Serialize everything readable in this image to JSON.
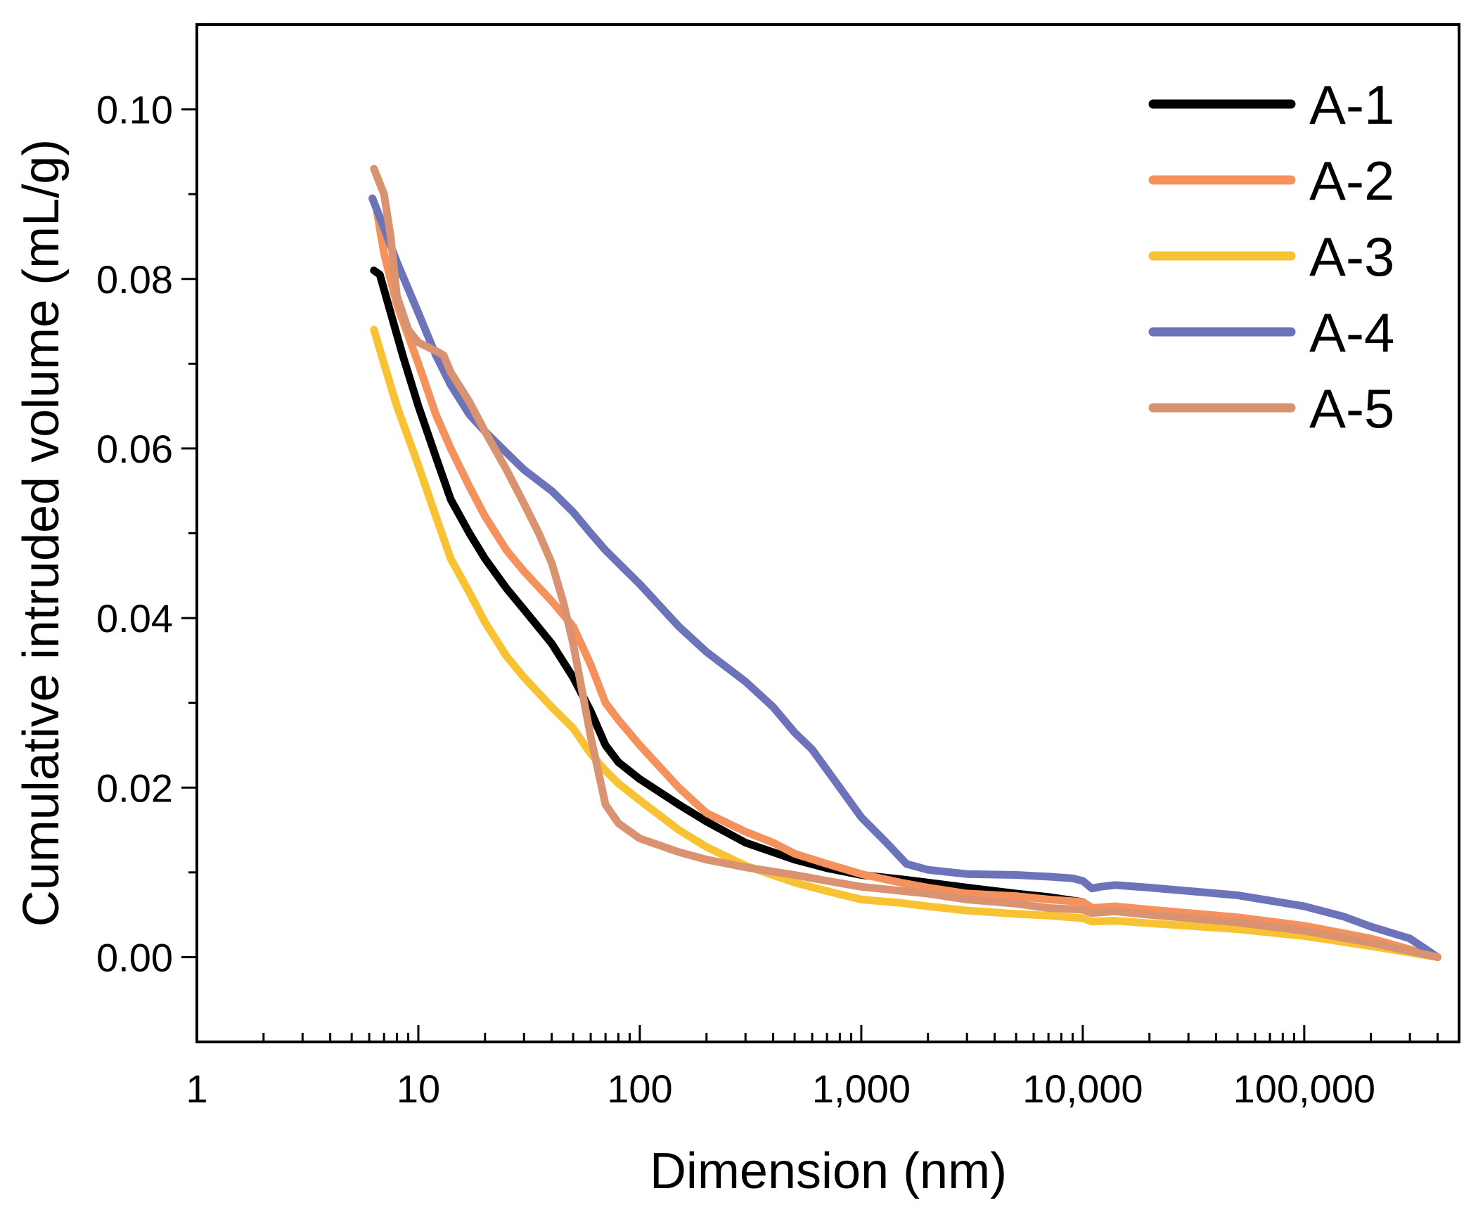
{
  "chart_data": {
    "type": "line",
    "title": "",
    "xlabel": "Dimension (nm)",
    "ylabel": "Cumulative intruded volume (mL/g)",
    "xscale": "log",
    "xlim": [
      1,
      500000
    ],
    "ylim": [
      -0.01,
      0.11
    ],
    "x_ticks": [
      {
        "value": 1,
        "label": "1"
      },
      {
        "value": 10,
        "label": "10"
      },
      {
        "value": 100,
        "label": "100"
      },
      {
        "value": 1000,
        "label": "1,000"
      },
      {
        "value": 10000,
        "label": "10,000"
      },
      {
        "value": 100000,
        "label": "100,000"
      }
    ],
    "y_ticks": [
      {
        "value": 0.0,
        "label": "0.00"
      },
      {
        "value": 0.02,
        "label": "0.02"
      },
      {
        "value": 0.04,
        "label": "0.04"
      },
      {
        "value": 0.06,
        "label": "0.06"
      },
      {
        "value": 0.08,
        "label": "0.08"
      },
      {
        "value": 0.1,
        "label": "0.10"
      }
    ],
    "y_minor_ticks": [
      0.01,
      0.03,
      0.05,
      0.07,
      0.09
    ],
    "legend_position": "top-right",
    "series": [
      {
        "name": "A-1",
        "color": "#000000",
        "points": [
          [
            6.3,
            0.081
          ],
          [
            6.7,
            0.0805
          ],
          [
            7.5,
            0.076
          ],
          [
            8.5,
            0.071
          ],
          [
            10,
            0.065
          ],
          [
            12,
            0.059
          ],
          [
            14,
            0.054
          ],
          [
            17,
            0.05
          ],
          [
            20,
            0.047
          ],
          [
            25,
            0.0435
          ],
          [
            30,
            0.041
          ],
          [
            40,
            0.037
          ],
          [
            50,
            0.033
          ],
          [
            60,
            0.029
          ],
          [
            70,
            0.025
          ],
          [
            80,
            0.023
          ],
          [
            100,
            0.021
          ],
          [
            150,
            0.018
          ],
          [
            200,
            0.016
          ],
          [
            300,
            0.0135
          ],
          [
            500,
            0.0115
          ],
          [
            700,
            0.0105
          ],
          [
            1000,
            0.0097
          ],
          [
            1500,
            0.0092
          ],
          [
            2000,
            0.0088
          ],
          [
            3000,
            0.0082
          ],
          [
            5000,
            0.0075
          ],
          [
            7000,
            0.0071
          ],
          [
            10000,
            0.0065
          ],
          [
            11000,
            0.0058
          ],
          [
            14000,
            0.0058
          ],
          [
            20000,
            0.0053
          ],
          [
            50000,
            0.0043
          ],
          [
            100000,
            0.0033
          ],
          [
            200000,
            0.0018
          ],
          [
            400000,
            0.0
          ]
        ]
      },
      {
        "name": "A-2",
        "color": "#f4915d",
        "points": [
          [
            6.5,
            0.088
          ],
          [
            7,
            0.083
          ],
          [
            8,
            0.077
          ],
          [
            10,
            0.07
          ],
          [
            12,
            0.064
          ],
          [
            14,
            0.06
          ],
          [
            17,
            0.0555
          ],
          [
            20,
            0.052
          ],
          [
            25,
            0.048
          ],
          [
            30,
            0.0455
          ],
          [
            40,
            0.042
          ],
          [
            50,
            0.039
          ],
          [
            60,
            0.0345
          ],
          [
            70,
            0.03
          ],
          [
            80,
            0.028
          ],
          [
            100,
            0.025
          ],
          [
            150,
            0.02
          ],
          [
            200,
            0.017
          ],
          [
            300,
            0.0148
          ],
          [
            400,
            0.0135
          ],
          [
            500,
            0.0122
          ],
          [
            700,
            0.011
          ],
          [
            1000,
            0.0098
          ],
          [
            1500,
            0.0088
          ],
          [
            2000,
            0.0082
          ],
          [
            3000,
            0.0075
          ],
          [
            5000,
            0.0072
          ],
          [
            7000,
            0.0068
          ],
          [
            10000,
            0.0065
          ],
          [
            11000,
            0.0058
          ],
          [
            14000,
            0.006
          ],
          [
            20000,
            0.0056
          ],
          [
            50000,
            0.0047
          ],
          [
            100000,
            0.0037
          ],
          [
            200000,
            0.0022
          ],
          [
            400000,
            0.0
          ]
        ]
      },
      {
        "name": "A-3",
        "color": "#f8c233",
        "points": [
          [
            6.3,
            0.074
          ],
          [
            7,
            0.07
          ],
          [
            8,
            0.065
          ],
          [
            10,
            0.058
          ],
          [
            12,
            0.052
          ],
          [
            14,
            0.047
          ],
          [
            17,
            0.043
          ],
          [
            20,
            0.0395
          ],
          [
            25,
            0.0355
          ],
          [
            30,
            0.033
          ],
          [
            40,
            0.0295
          ],
          [
            50,
            0.027
          ],
          [
            60,
            0.024
          ],
          [
            70,
            0.022
          ],
          [
            80,
            0.0205
          ],
          [
            100,
            0.0185
          ],
          [
            150,
            0.015
          ],
          [
            200,
            0.013
          ],
          [
            300,
            0.0108
          ],
          [
            500,
            0.0088
          ],
          [
            700,
            0.0078
          ],
          [
            1000,
            0.0068
          ],
          [
            1500,
            0.0064
          ],
          [
            2000,
            0.006
          ],
          [
            3000,
            0.0055
          ],
          [
            5000,
            0.0051
          ],
          [
            7000,
            0.0049
          ],
          [
            10000,
            0.0046
          ],
          [
            11000,
            0.0042
          ],
          [
            14000,
            0.0043
          ],
          [
            20000,
            0.004
          ],
          [
            50000,
            0.0033
          ],
          [
            100000,
            0.0025
          ],
          [
            200000,
            0.0013
          ],
          [
            400000,
            0.0
          ]
        ]
      },
      {
        "name": "A-4",
        "color": "#6c73b8",
        "points": [
          [
            6.2,
            0.0895
          ],
          [
            7,
            0.086
          ],
          [
            8,
            0.082
          ],
          [
            10,
            0.076
          ],
          [
            12,
            0.071
          ],
          [
            14,
            0.0675
          ],
          [
            17,
            0.064
          ],
          [
            20,
            0.062
          ],
          [
            25,
            0.0595
          ],
          [
            30,
            0.0575
          ],
          [
            40,
            0.055
          ],
          [
            50,
            0.0525
          ],
          [
            60,
            0.05
          ],
          [
            70,
            0.048
          ],
          [
            100,
            0.044
          ],
          [
            150,
            0.039
          ],
          [
            200,
            0.036
          ],
          [
            300,
            0.0325
          ],
          [
            400,
            0.0295
          ],
          [
            500,
            0.0265
          ],
          [
            600,
            0.0245
          ],
          [
            800,
            0.02
          ],
          [
            1000,
            0.0165
          ],
          [
            1300,
            0.0135
          ],
          [
            1600,
            0.011
          ],
          [
            2000,
            0.0103
          ],
          [
            3000,
            0.0098
          ],
          [
            5000,
            0.0097
          ],
          [
            7000,
            0.0095
          ],
          [
            9000,
            0.0093
          ],
          [
            10000,
            0.009
          ],
          [
            11000,
            0.0081
          ],
          [
            12000,
            0.0083
          ],
          [
            14000,
            0.0085
          ],
          [
            20000,
            0.0082
          ],
          [
            50000,
            0.0073
          ],
          [
            100000,
            0.006
          ],
          [
            150000,
            0.0048
          ],
          [
            200000,
            0.0036
          ],
          [
            300000,
            0.0022
          ],
          [
            400000,
            0.0
          ]
        ]
      },
      {
        "name": "A-5",
        "color": "#d99370",
        "points": [
          [
            6.3,
            0.093
          ],
          [
            7,
            0.09
          ],
          [
            7.5,
            0.085
          ],
          [
            8,
            0.078
          ],
          [
            9,
            0.074
          ],
          [
            10,
            0.0725
          ],
          [
            12,
            0.0715
          ],
          [
            13,
            0.071
          ],
          [
            14,
            0.069
          ],
          [
            17,
            0.0655
          ],
          [
            20,
            0.062
          ],
          [
            25,
            0.0575
          ],
          [
            30,
            0.0535
          ],
          [
            35,
            0.05
          ],
          [
            40,
            0.0465
          ],
          [
            45,
            0.042
          ],
          [
            50,
            0.037
          ],
          [
            60,
            0.026
          ],
          [
            70,
            0.018
          ],
          [
            80,
            0.0158
          ],
          [
            100,
            0.014
          ],
          [
            150,
            0.0124
          ],
          [
            200,
            0.0115
          ],
          [
            300,
            0.0106
          ],
          [
            500,
            0.0097
          ],
          [
            700,
            0.009
          ],
          [
            1000,
            0.0083
          ],
          [
            2000,
            0.0075
          ],
          [
            3000,
            0.0068
          ],
          [
            5000,
            0.0063
          ],
          [
            7000,
            0.0058
          ],
          [
            10000,
            0.0056
          ],
          [
            11000,
            0.0052
          ],
          [
            14000,
            0.0054
          ],
          [
            20000,
            0.005
          ],
          [
            50000,
            0.0041
          ],
          [
            100000,
            0.0031
          ],
          [
            200000,
            0.0017
          ],
          [
            400000,
            0.0
          ]
        ]
      }
    ]
  }
}
